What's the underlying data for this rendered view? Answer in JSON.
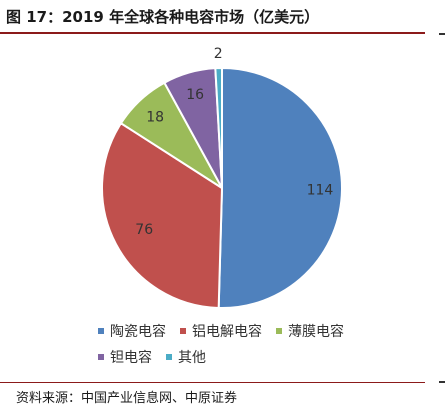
{
  "header": {
    "title": "图 17：2019 年全球各种电容市场（亿美元）"
  },
  "source": {
    "text": "资料来源：中国产业信息网、中原证券"
  },
  "chart_data": {
    "type": "pie",
    "title": "",
    "start_angle_deg": 0,
    "direction": "clockwise",
    "legend_position": "bottom",
    "series": [
      {
        "values": [
          114,
          76,
          18,
          16,
          2
        ],
        "categories": [
          "陶瓷电容",
          "铝电解电容",
          "薄膜电容",
          "钽电容",
          "其他"
        ],
        "colors": [
          "#4f81bd",
          "#c0504d",
          "#9bbb59",
          "#8064a2",
          "#4bacc6"
        ],
        "data_labels": [
          "114",
          "76",
          "18",
          "16",
          "2"
        ]
      }
    ]
  }
}
